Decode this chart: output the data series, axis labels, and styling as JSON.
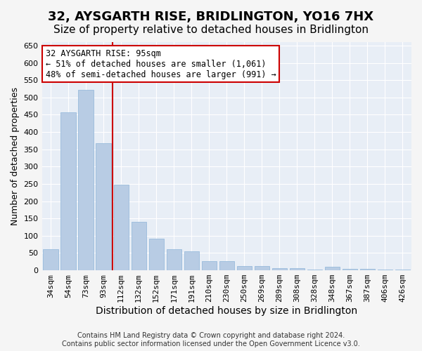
{
  "title": "32, AYSGARTH RISE, BRIDLINGTON, YO16 7HX",
  "subtitle": "Size of property relative to detached houses in Bridlington",
  "xlabel": "Distribution of detached houses by size in Bridlington",
  "ylabel": "Number of detached properties",
  "footer_line1": "Contains HM Land Registry data © Crown copyright and database right 2024.",
  "footer_line2": "Contains public sector information licensed under the Open Government Licence v3.0.",
  "categories": [
    "34sqm",
    "54sqm",
    "73sqm",
    "93sqm",
    "112sqm",
    "132sqm",
    "152sqm",
    "171sqm",
    "191sqm",
    "210sqm",
    "230sqm",
    "250sqm",
    "269sqm",
    "289sqm",
    "308sqm",
    "328sqm",
    "348sqm",
    "367sqm",
    "387sqm",
    "406sqm",
    "426sqm"
  ],
  "values": [
    62,
    456,
    522,
    368,
    248,
    140,
    92,
    62,
    55,
    26,
    26,
    12,
    12,
    7,
    7,
    2,
    10,
    4,
    5,
    3,
    3
  ],
  "bar_color": "#b8cce4",
  "bar_edge_color": "#8db4d9",
  "background_color": "#e8eef6",
  "grid_color": "#ffffff",
  "property_label": "32 AYSGARTH RISE: 95sqm",
  "annotation_line1": "← 51% of detached houses are smaller (1,061)",
  "annotation_line2": "48% of semi-detached houses are larger (991) →",
  "vline_color": "#cc0000",
  "vline_x": 3.5,
  "ylim": [
    0,
    660
  ],
  "yticks": [
    0,
    50,
    100,
    150,
    200,
    250,
    300,
    350,
    400,
    450,
    500,
    550,
    600,
    650
  ],
  "annotation_box_color": "#ffffff",
  "annotation_box_edge_color": "#cc0000",
  "title_fontsize": 13,
  "subtitle_fontsize": 11,
  "xlabel_fontsize": 10,
  "ylabel_fontsize": 9,
  "tick_fontsize": 8,
  "annotation_fontsize": 8.5,
  "footer_fontsize": 7
}
